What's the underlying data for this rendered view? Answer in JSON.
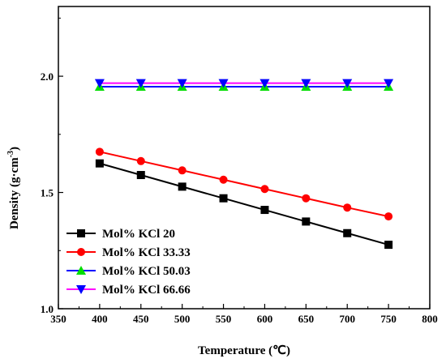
{
  "chart_data": {
    "type": "line",
    "xlabel": "Temperature (℃)",
    "ylabel_main": "Density (g·cm",
    "ylabel_sup": "-3",
    "ylabel_close": ")",
    "xlim": [
      350,
      800
    ],
    "ylim": [
      1.0,
      2.3
    ],
    "xticks": [
      350,
      400,
      450,
      500,
      550,
      600,
      650,
      700,
      750,
      800
    ],
    "xtick_labels": [
      "350",
      "400",
      "450",
      "500",
      "550",
      "600",
      "650",
      "700",
      "750",
      "800"
    ],
    "yticks": [
      1.0,
      1.5,
      2.0
    ],
    "ytick_labels": [
      "1.0",
      "1.5",
      "2.0"
    ],
    "grid": false,
    "legend_position": "bottom-left",
    "x": [
      400,
      450,
      500,
      550,
      600,
      650,
      700,
      750
    ],
    "series": [
      {
        "name": "Mol% KCl 20",
        "color": "#000000",
        "marker": "square",
        "values": [
          1.625,
          1.575,
          1.525,
          1.475,
          1.425,
          1.375,
          1.325,
          1.275
        ]
      },
      {
        "name": "Mol% KCl 33.33",
        "color": "#ff0000",
        "marker": "circle",
        "values": [
          1.675,
          1.635,
          1.595,
          1.555,
          1.515,
          1.475,
          1.435,
          1.397
        ]
      },
      {
        "name": "Mol% KCl 50.03",
        "color": "#0000ff",
        "marker": "triangle-up",
        "marker_color": "#00dd00",
        "values": [
          1.955,
          1.955,
          1.955,
          1.955,
          1.955,
          1.955,
          1.955,
          1.955
        ]
      },
      {
        "name": "Mol% KCl 66.66",
        "color": "#ff00ff",
        "marker": "triangle-down",
        "marker_color": "#0000ff",
        "values": [
          1.97,
          1.97,
          1.97,
          1.97,
          1.97,
          1.97,
          1.97,
          1.97
        ]
      }
    ]
  }
}
